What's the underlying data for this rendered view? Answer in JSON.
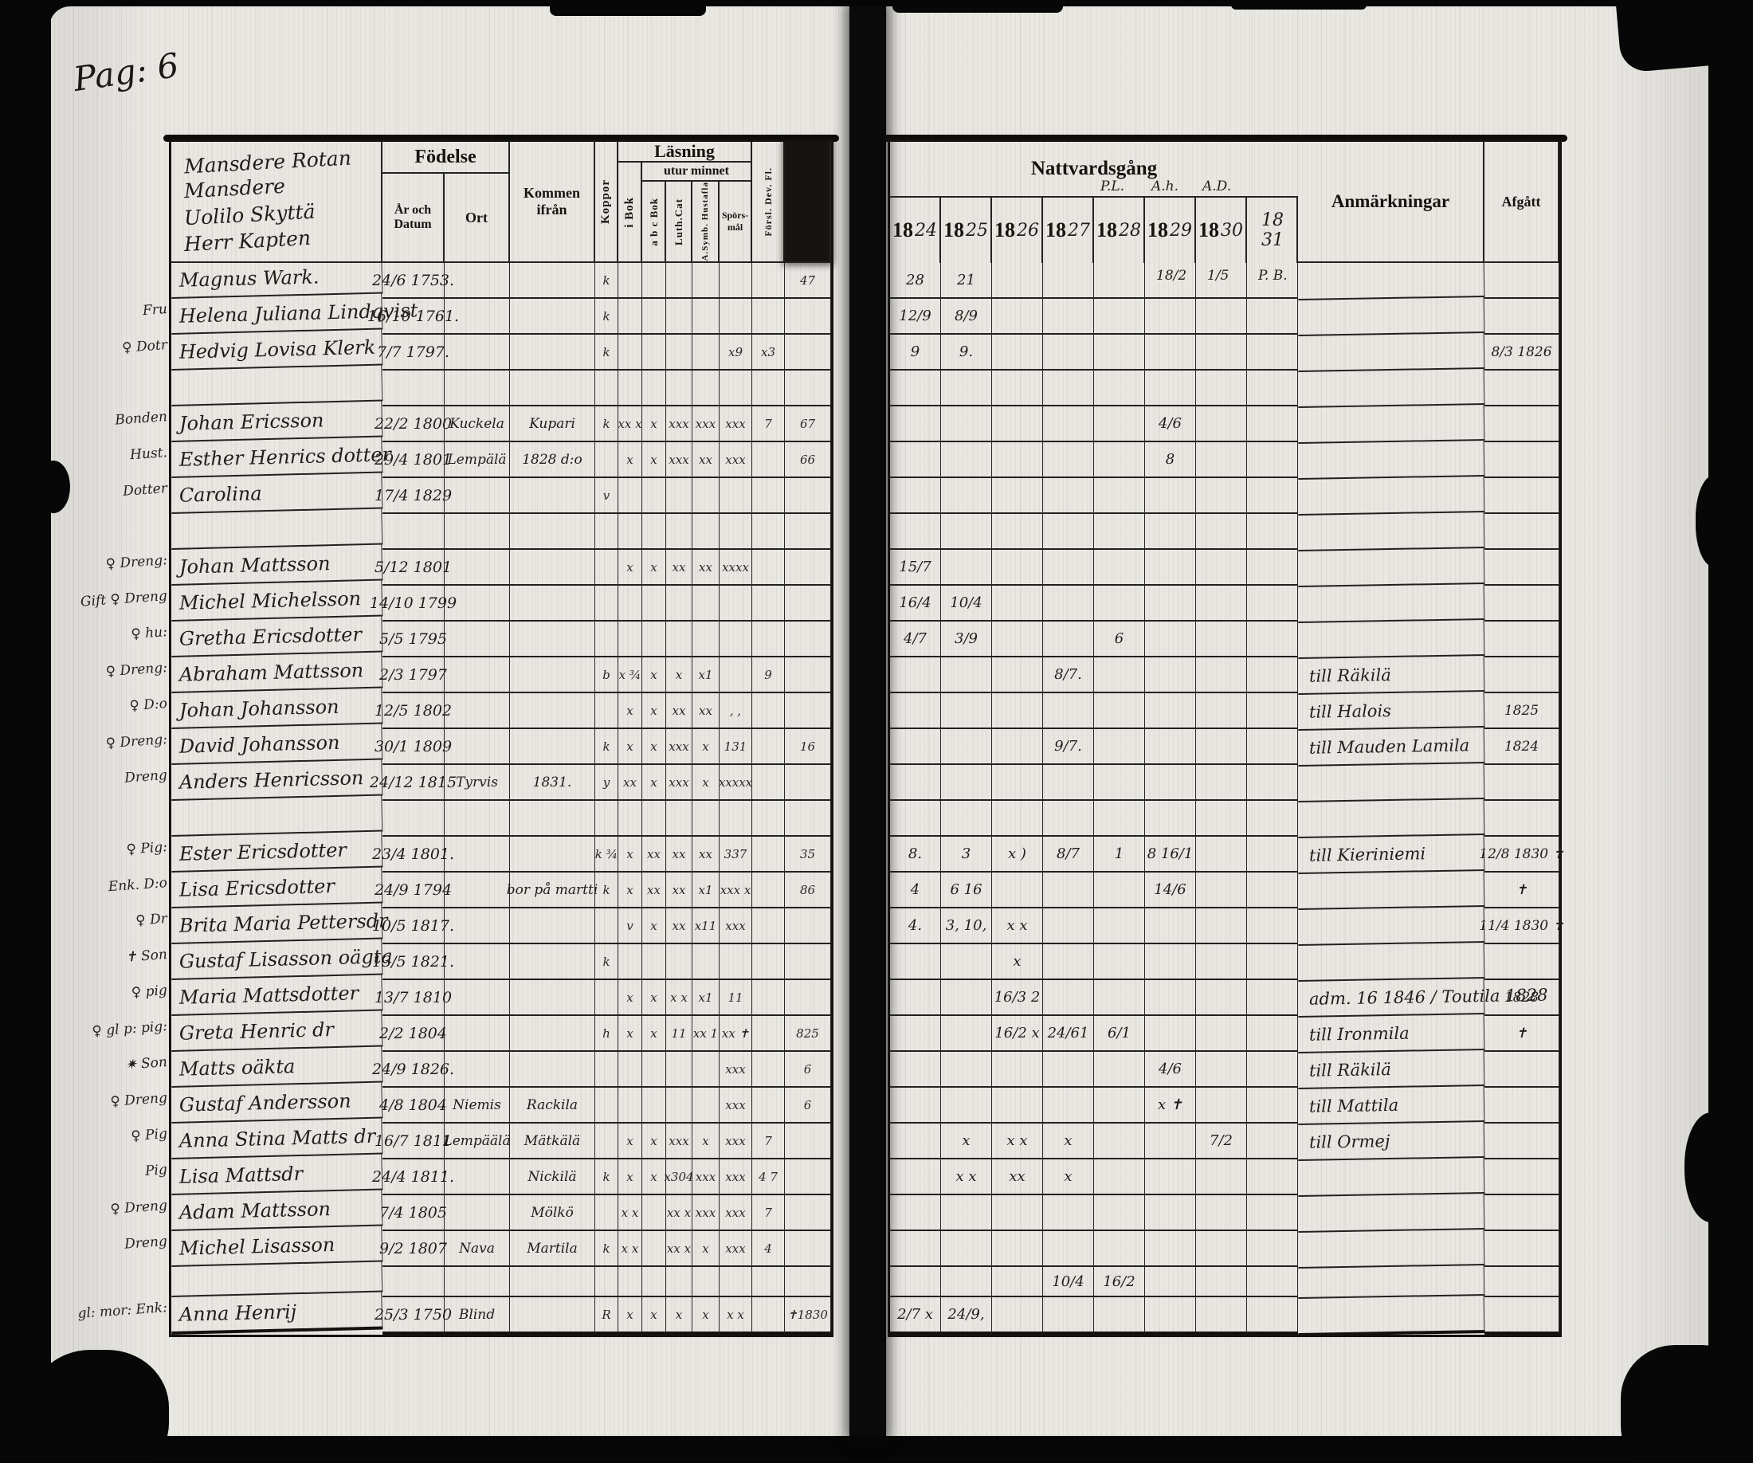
{
  "page": {
    "label": "Pag: 6"
  },
  "left_header": {
    "names_block": [
      "Mansdere Rotan",
      "Mansdere",
      "Uolilo Skyttä",
      "Herr Kapten"
    ],
    "fodelse": "Födelse",
    "ar_och_datum": "År och Datum",
    "ort": "Ort",
    "kommen": "Kommen ifrån",
    "koppor": "Koppor",
    "lasning": "Läsning",
    "utur_minnet": "utur minnet",
    "i_bok": "i Bok",
    "abc_bok": "a b c Bok",
    "luth_cat": "Luth.Cat",
    "hustafla": "A.Symb. Hustafla",
    "sporsmal": "Spörs-mål",
    "forsl": "Försl. Dev. Fl."
  },
  "right_header": {
    "nattvardsgang": "Nattvardsgång",
    "anmarkningar": "Anmärkningar",
    "afgatt": "Afgått",
    "years": [
      {
        "printed": "18",
        "hand": "24",
        "above": "",
        "below": ""
      },
      {
        "printed": "18",
        "hand": "25",
        "above": "",
        "below": ""
      },
      {
        "printed": "18",
        "hand": "26",
        "above": "",
        "below": ""
      },
      {
        "printed": "18",
        "hand": "27",
        "above": "",
        "below": ""
      },
      {
        "printed": "18",
        "hand": "28",
        "above": "P.L.",
        "below": ""
      },
      {
        "printed": "18",
        "hand": "29",
        "above": "A.h.",
        "below": "18/2"
      },
      {
        "printed": "18",
        "hand": "30",
        "above": "A.D.",
        "below": "1/5"
      },
      {
        "printed": "",
        "hand": "18 31",
        "above": "",
        "below": "P. B."
      }
    ]
  },
  "rows": [
    {
      "m": "",
      "n": "Magnus Wark.",
      "d": "24/6 1753.",
      "o": "",
      "k": "",
      "kp": "k",
      "b": "",
      "m1": "",
      "m2": "",
      "m3": "",
      "m4": "",
      "fo": "",
      "ex": "47",
      "v": [
        "28",
        "21",
        "",
        "",
        "",
        "",
        "",
        ""
      ],
      "anm": "",
      "afg": ""
    },
    {
      "m": "Fru",
      "n": "Helena Juliana Lindqvist",
      "d": "16/10 1761.",
      "o": "",
      "k": "",
      "kp": "k",
      "b": "",
      "m1": "",
      "m2": "",
      "m3": "",
      "m4": "",
      "fo": "",
      "ex": "",
      "v": [
        "12/9",
        "8/9",
        "",
        "",
        "",
        "",
        "",
        ""
      ],
      "anm": "",
      "afg": ""
    },
    {
      "m": "♀ Dotr",
      "n": "Hedvig Lovisa Klerk",
      "d": "7/7 1797.",
      "o": "",
      "k": "",
      "kp": "k",
      "b": "",
      "m1": "",
      "m2": "",
      "m3": "",
      "m4": "x9",
      "fo": "x3",
      "ex": "",
      "v": [
        "9",
        "9.",
        "",
        "",
        "",
        "",
        "",
        ""
      ],
      "anm": "",
      "afg": "8/3 1826"
    },
    {},
    {
      "m": "Bonden",
      "n": "Johan Ericsson",
      "d": "22/2 1800",
      "o": "Kuckela",
      "k": "Kupari",
      "kp": "k",
      "b": "xx x",
      "m1": "x",
      "m2": "xxx",
      "m3": "xxx",
      "m4": "xxx",
      "fo": "7",
      "ex": "67",
      "v": [
        "",
        "",
        "",
        "",
        "",
        "4/6",
        "",
        ""
      ],
      "anm": "",
      "afg": ""
    },
    {
      "m": "Hust.",
      "n": "Esther Henrics dotter",
      "d": "29/4 1801",
      "o": "Lempälä",
      "k": "1828 d:o",
      "kp": "",
      "b": "x",
      "m1": "x",
      "m2": "xxx",
      "m3": "xx",
      "m4": "xxx",
      "fo": "",
      "ex": "66",
      "v": [
        "",
        "",
        "",
        "",
        "",
        "8",
        "",
        ""
      ],
      "anm": "",
      "afg": ""
    },
    {
      "m": "Dotter",
      "n": "Carolina",
      "d": "17/4 1829",
      "o": "",
      "k": "",
      "kp": "v",
      "b": "",
      "m1": "",
      "m2": "",
      "m3": "",
      "m4": "",
      "fo": "",
      "ex": "",
      "v": [
        "",
        "",
        "",
        "",
        "",
        "",
        "",
        ""
      ],
      "anm": "",
      "afg": ""
    },
    {},
    {
      "m": "♀ Dreng:",
      "n": "Johan Mattsson",
      "d": "5/12 1801",
      "o": "",
      "k": "",
      "kp": "",
      "b": "x",
      "m1": "x",
      "m2": "xx",
      "m3": "xx",
      "m4": "xxxx",
      "fo": "",
      "ex": "",
      "v": [
        "15/7",
        "",
        "",
        "",
        "",
        "",
        "",
        ""
      ],
      "anm": "",
      "afg": ""
    },
    {
      "m": "Gift ♀ Dreng",
      "n": "Michel Michelsson",
      "d": "14/10 1799",
      "o": "",
      "k": "",
      "kp": "",
      "b": "",
      "m1": "",
      "m2": "",
      "m3": "",
      "m4": "",
      "fo": "",
      "ex": "",
      "v": [
        "16/4",
        "10/4",
        "",
        "",
        "",
        "",
        "",
        ""
      ],
      "anm": "",
      "afg": ""
    },
    {
      "m": "♀ hu:",
      "n": "Gretha Ericsdotter",
      "d": "5/5 1795",
      "o": "",
      "k": "",
      "kp": "",
      "b": "",
      "m1": "",
      "m2": "",
      "m3": "",
      "m4": "",
      "fo": "",
      "ex": "",
      "v": [
        "4/7",
        "3/9",
        "",
        "",
        "6",
        "",
        "",
        ""
      ],
      "anm": "",
      "afg": ""
    },
    {
      "m": "♀ Dreng:",
      "n": "Abraham Mattsson",
      "d": "2/3 1797",
      "o": "",
      "k": "",
      "kp": "b",
      "b": "x ¾",
      "m1": "x",
      "m2": "x",
      "m3": "x1",
      "m4": "",
      "fo": "9",
      "ex": "",
      "v": [
        "",
        "",
        "",
        "8/7.",
        "",
        "",
        "",
        ""
      ],
      "anm": "till Räkilä",
      "afg": ""
    },
    {
      "m": "♀ D:o",
      "n": "Johan Johansson",
      "d": "12/5 1802",
      "o": "",
      "k": "",
      "kp": "",
      "b": "x",
      "m1": "x",
      "m2": "xx",
      "m3": "xx",
      "m4": ", ,",
      "fo": "",
      "ex": "",
      "v": [
        "",
        "",
        "",
        "",
        "",
        "",
        "",
        ""
      ],
      "anm": "till Halois",
      "afg": "1825"
    },
    {
      "m": "♀ Dreng:",
      "n": "David Johansson",
      "d": "30/1 1809",
      "o": "",
      "k": "",
      "kp": "k",
      "b": "x",
      "m1": "x",
      "m2": "xxx",
      "m3": "x",
      "m4": "131",
      "fo": "",
      "ex": "16",
      "v": [
        "",
        "",
        "",
        "9/7.",
        "",
        "",
        "",
        ""
      ],
      "anm": "till Mauden Lamila",
      "afg": "1824"
    },
    {
      "m": "Dreng",
      "n": "Anders Henricsson",
      "d": "24/12 1815",
      "o": "Tyrvis",
      "k": "1831.",
      "kp": "y",
      "b": "xx",
      "m1": "x",
      "m2": "xxx",
      "m3": "x",
      "m4": "xxxxx",
      "fo": "",
      "ex": "",
      "v": [
        "",
        "",
        "",
        "",
        "",
        "",
        "",
        ""
      ],
      "anm": "",
      "afg": ""
    },
    {},
    {
      "m": "♀ Pig:",
      "n": "Ester Ericsdotter",
      "d": "23/4 1801.",
      "o": "",
      "k": "",
      "kp": "k ¾",
      "b": "x",
      "m1": "xx",
      "m2": "xx",
      "m3": "xx",
      "m4": "337",
      "fo": "",
      "ex": "35",
      "v": [
        "8.",
        "3",
        "x )",
        "8/7",
        "1",
        "8 16/1",
        "",
        ""
      ],
      "anm": "till Kieriniemi",
      "afg": "12/8 1830 ✝"
    },
    {
      "m": "Enk. D:o",
      "n": "Lisa Ericsdotter",
      "d": "24/9 1794",
      "o": "",
      "k": "bor på martti",
      "kp": "k",
      "b": "x",
      "m1": "xx",
      "m2": "xx",
      "m3": "x1",
      "m4": "xxx x",
      "fo": "",
      "ex": "86",
      "v": [
        "4",
        "6 16",
        "",
        "",
        "",
        "14/6",
        "",
        ""
      ],
      "anm": "",
      "afg": "✝"
    },
    {
      "m": "♀ Dr",
      "n": "Brita Maria Pettersdr",
      "d": "10/5 1817.",
      "o": "",
      "k": "",
      "kp": "",
      "b": "v",
      "m1": "x",
      "m2": "xx",
      "m3": "x11",
      "m4": "xxx",
      "fo": "",
      "ex": "",
      "v": [
        "4.",
        "3, 10,",
        "x x",
        "",
        "",
        "",
        "",
        ""
      ],
      "anm": "",
      "afg": "11/4 1830 ✝"
    },
    {
      "m": "✝ Son",
      "n": "Gustaf Lisasson oägta",
      "d": "13/5 1821.",
      "o": "",
      "k": "",
      "kp": "k",
      "b": "",
      "m1": "",
      "m2": "",
      "m3": "",
      "m4": "",
      "fo": "",
      "ex": "",
      "v": [
        "",
        "",
        "x",
        "",
        "",
        "",
        "",
        ""
      ],
      "anm": "",
      "afg": ""
    },
    {
      "m": "♀ pig",
      "n": "Maria Mattsdotter",
      "d": "13/7 1810",
      "o": "",
      "k": "",
      "kp": "",
      "b": "x",
      "m1": "x",
      "m2": "x x",
      "m3": "x1",
      "m4": "11",
      "fo": "",
      "ex": "",
      "v": [
        "",
        "",
        "16/3 2",
        "",
        "",
        "",
        "",
        ""
      ],
      "anm": "adm. 16 1846 / Toutila 1828",
      "afg": "1828"
    },
    {
      "m": "♀ gl p: pig:",
      "n": "Greta Henric dr",
      "d": "2/2 1804",
      "o": "",
      "k": "",
      "kp": "h",
      "b": "x",
      "m1": "x",
      "m2": "11",
      "m3": "xx 1",
      "m4": "xx ✝",
      "fo": "",
      "ex": "825",
      "v": [
        "",
        "",
        "16/2 x",
        "24/61",
        "6/1",
        "",
        "",
        ""
      ],
      "anm": "till Ironmila",
      "afg": "✝"
    },
    {
      "m": "✷ Son",
      "n": "Matts oäkta",
      "d": "24/9 1826.",
      "o": "",
      "k": "",
      "kp": "",
      "b": "",
      "m1": "",
      "m2": "",
      "m3": "",
      "m4": "xxx",
      "fo": "",
      "ex": "6",
      "v": [
        "",
        "",
        "",
        "",
        "",
        "4/6",
        "",
        ""
      ],
      "anm": "till Räkilä",
      "afg": ""
    },
    {
      "m": "♀ Dreng",
      "n": "Gustaf Andersson",
      "d": "4/8 1804",
      "o": "Niemis",
      "k": "Rackila",
      "kp": "",
      "b": "",
      "m1": "",
      "m2": "",
      "m3": "",
      "m4": "xxx",
      "fo": "",
      "ex": "6",
      "v": [
        "",
        "",
        "",
        "",
        "",
        "x ✝",
        "",
        ""
      ],
      "anm": "till Mattila",
      "afg": ""
    },
    {
      "m": "♀ Pig",
      "n": "Anna Stina Matts dr",
      "d": "16/7 1811",
      "o": "Lempäälä",
      "k": "Mätkälä",
      "kp": "",
      "b": "x",
      "m1": "x",
      "m2": "xxx",
      "m3": "x",
      "m4": "xxx",
      "fo": "7",
      "ex": "",
      "v": [
        "",
        "x",
        "x x",
        "x",
        "",
        "",
        "7/2",
        ""
      ],
      "anm": "till Ormej",
      "afg": ""
    },
    {
      "m": "Pig",
      "n": "Lisa Mattsdr",
      "d": "24/4 1811.",
      "o": "",
      "k": "Nickilä",
      "kp": "k",
      "b": "x",
      "m1": "x",
      "m2": "x304",
      "m3": "xxx",
      "m4": "xxx",
      "fo": "4 7",
      "ex": "",
      "v": [
        "",
        "x x",
        "xx",
        "x",
        "",
        "",
        "",
        ""
      ],
      "anm": "",
      "afg": ""
    },
    {
      "m": "♀ Dreng",
      "n": "Adam Mattsson",
      "d": "7/4 1805",
      "o": "",
      "k": "Mölkö",
      "kp": "",
      "b": "x x",
      "m1": "",
      "m2": "xx x",
      "m3": "xxx",
      "m4": "xxx",
      "fo": "7",
      "ex": "",
      "v": [
        "",
        "",
        "",
        "",
        "",
        "",
        "",
        ""
      ],
      "anm": "",
      "afg": ""
    },
    {
      "m": "Dreng",
      "n": "Michel Lisasson",
      "d": "9/2 1807",
      "o": "Nava",
      "k": "Martila",
      "kp": "k",
      "b": "x x",
      "m1": "",
      "m2": "xx x",
      "m3": "x",
      "m4": "xxx",
      "fo": "4",
      "ex": "",
      "v": [
        "",
        "",
        "",
        "",
        "",
        "",
        "",
        ""
      ],
      "anm": "",
      "afg": ""
    },
    {
      "m": "",
      "n": "",
      "d": "",
      "o": "",
      "k": "",
      "kp": "",
      "b": "",
      "m1": "",
      "m2": "",
      "m3": "",
      "m4": "",
      "fo": "",
      "ex": "",
      "v": [
        "",
        "",
        "",
        "10/4",
        "16/2",
        "",
        "",
        ""
      ],
      "anm": "",
      "afg": ""
    },
    {
      "m": "gl: mor: Enk:",
      "n": "Anna Henrij",
      "d": "25/3 1750",
      "o": "Blind",
      "k": "",
      "kp": "R",
      "b": "x",
      "m1": "x",
      "m2": "x",
      "m3": "x",
      "m4": "x x",
      "fo": "",
      "ex": "✝1830",
      "v": [
        "2/7 x",
        "24/9,",
        "",
        "",
        "",
        "",
        "",
        ""
      ],
      "anm": "",
      "afg": ""
    }
  ]
}
